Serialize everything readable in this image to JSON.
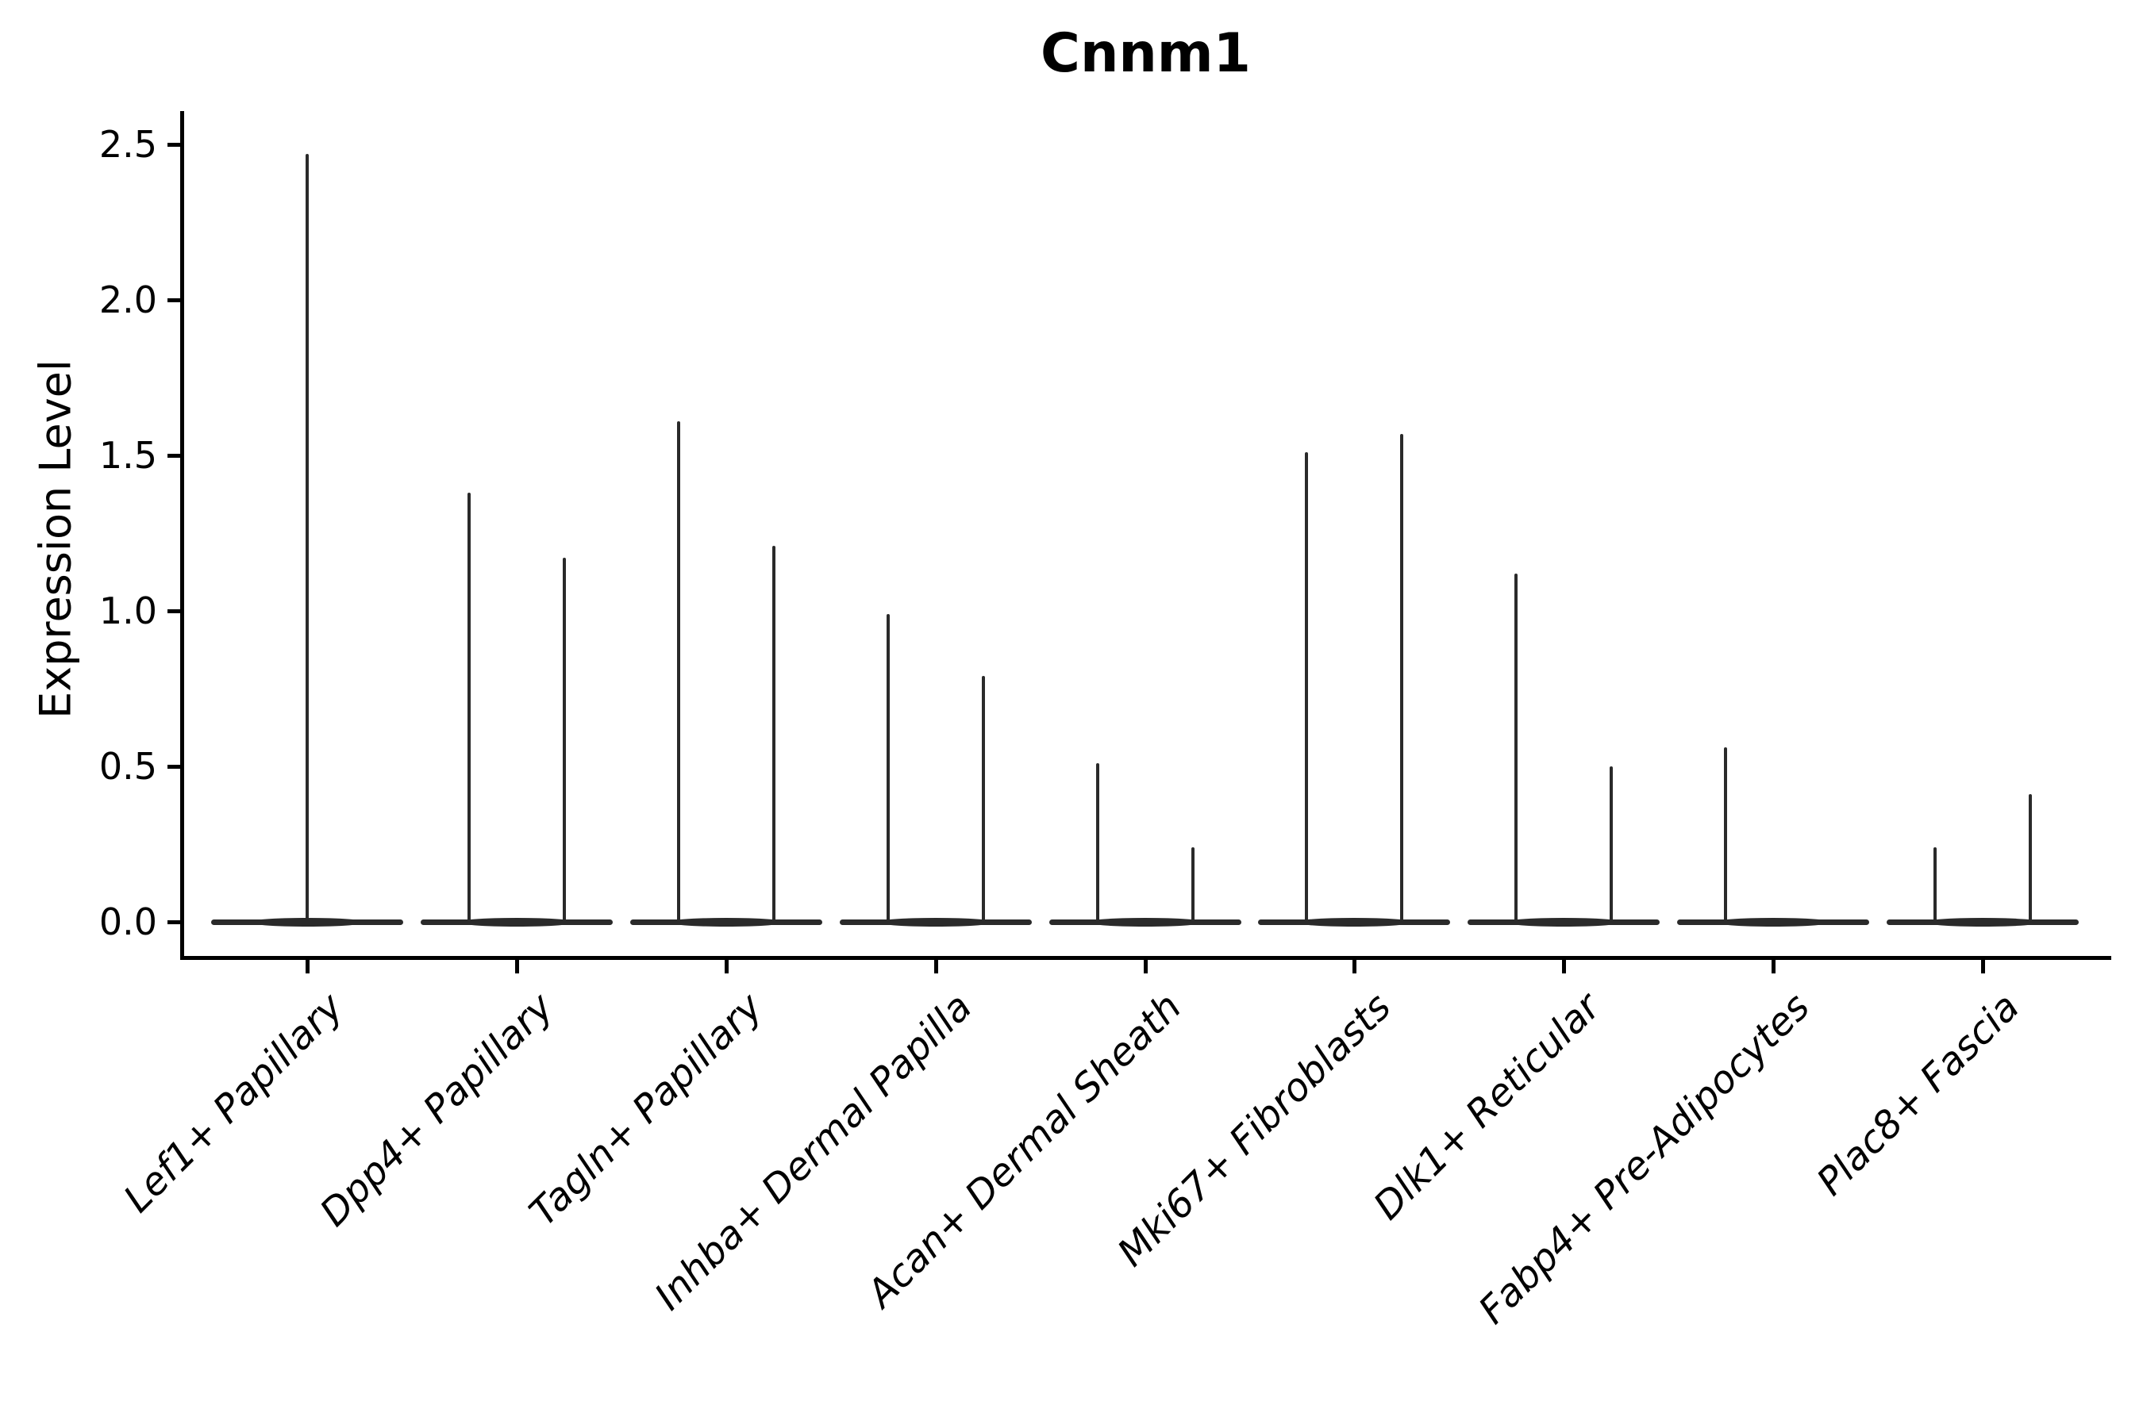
{
  "chart_data": {
    "type": "violin",
    "title": "Cnnm1",
    "xlabel": "",
    "ylabel": "Expression Level",
    "ylim": [
      0,
      2.5
    ],
    "y_ticks": [
      0.0,
      0.5,
      1.0,
      1.5,
      2.0,
      2.5
    ],
    "grid": false,
    "legend": "none",
    "baseline_value": 0.0,
    "style": {
      "violin_color": "#2a2a2a",
      "axis_color": "#000000",
      "background": "#ffffff"
    },
    "categories": [
      "Lef1+ Papillary",
      "Dpp4+ Papillary",
      "Tagln+ Papillary",
      "Inhba+ Dermal Papilla",
      "Acan+ Dermal Sheath",
      "Mki67+ Fibroblasts",
      "Dlk1+ Reticular",
      "Fabp4+ Pre-Adipocytes",
      "Plac8+ Fascia"
    ],
    "groups": [
      {
        "category": "Lef1+ Papillary",
        "spikes": [
          {
            "offset": 0,
            "max": 2.47
          }
        ]
      },
      {
        "category": "Dpp4+ Papillary",
        "spikes": [
          {
            "offset": -60,
            "max": 1.38
          },
          {
            "offset": 60,
            "max": 1.17
          }
        ]
      },
      {
        "category": "Tagln+ Papillary",
        "spikes": [
          {
            "offset": -60,
            "max": 1.61
          },
          {
            "offset": 60,
            "max": 1.21
          }
        ]
      },
      {
        "category": "Inhba+ Dermal Papilla",
        "spikes": [
          {
            "offset": -60,
            "max": 0.99
          },
          {
            "offset": 60,
            "max": 0.79
          }
        ]
      },
      {
        "category": "Acan+ Dermal Sheath",
        "spikes": [
          {
            "offset": -60,
            "max": 0.51
          },
          {
            "offset": 60,
            "max": 0.24
          }
        ]
      },
      {
        "category": "Mki67+ Fibroblasts",
        "spikes": [
          {
            "offset": -60,
            "max": 1.51
          },
          {
            "offset": 60,
            "max": 1.57
          }
        ]
      },
      {
        "category": "Dlk1+ Reticular",
        "spikes": [
          {
            "offset": -60,
            "max": 1.12
          },
          {
            "offset": 60,
            "max": 0.5
          }
        ]
      },
      {
        "category": "Fabp4+ Pre-Adipocytes",
        "spikes": [
          {
            "offset": -60,
            "max": 0.56
          }
        ]
      },
      {
        "category": "Plac8+ Fascia",
        "spikes": [
          {
            "offset": -60,
            "max": 0.24
          },
          {
            "offset": 60,
            "max": 0.41
          }
        ]
      }
    ]
  }
}
